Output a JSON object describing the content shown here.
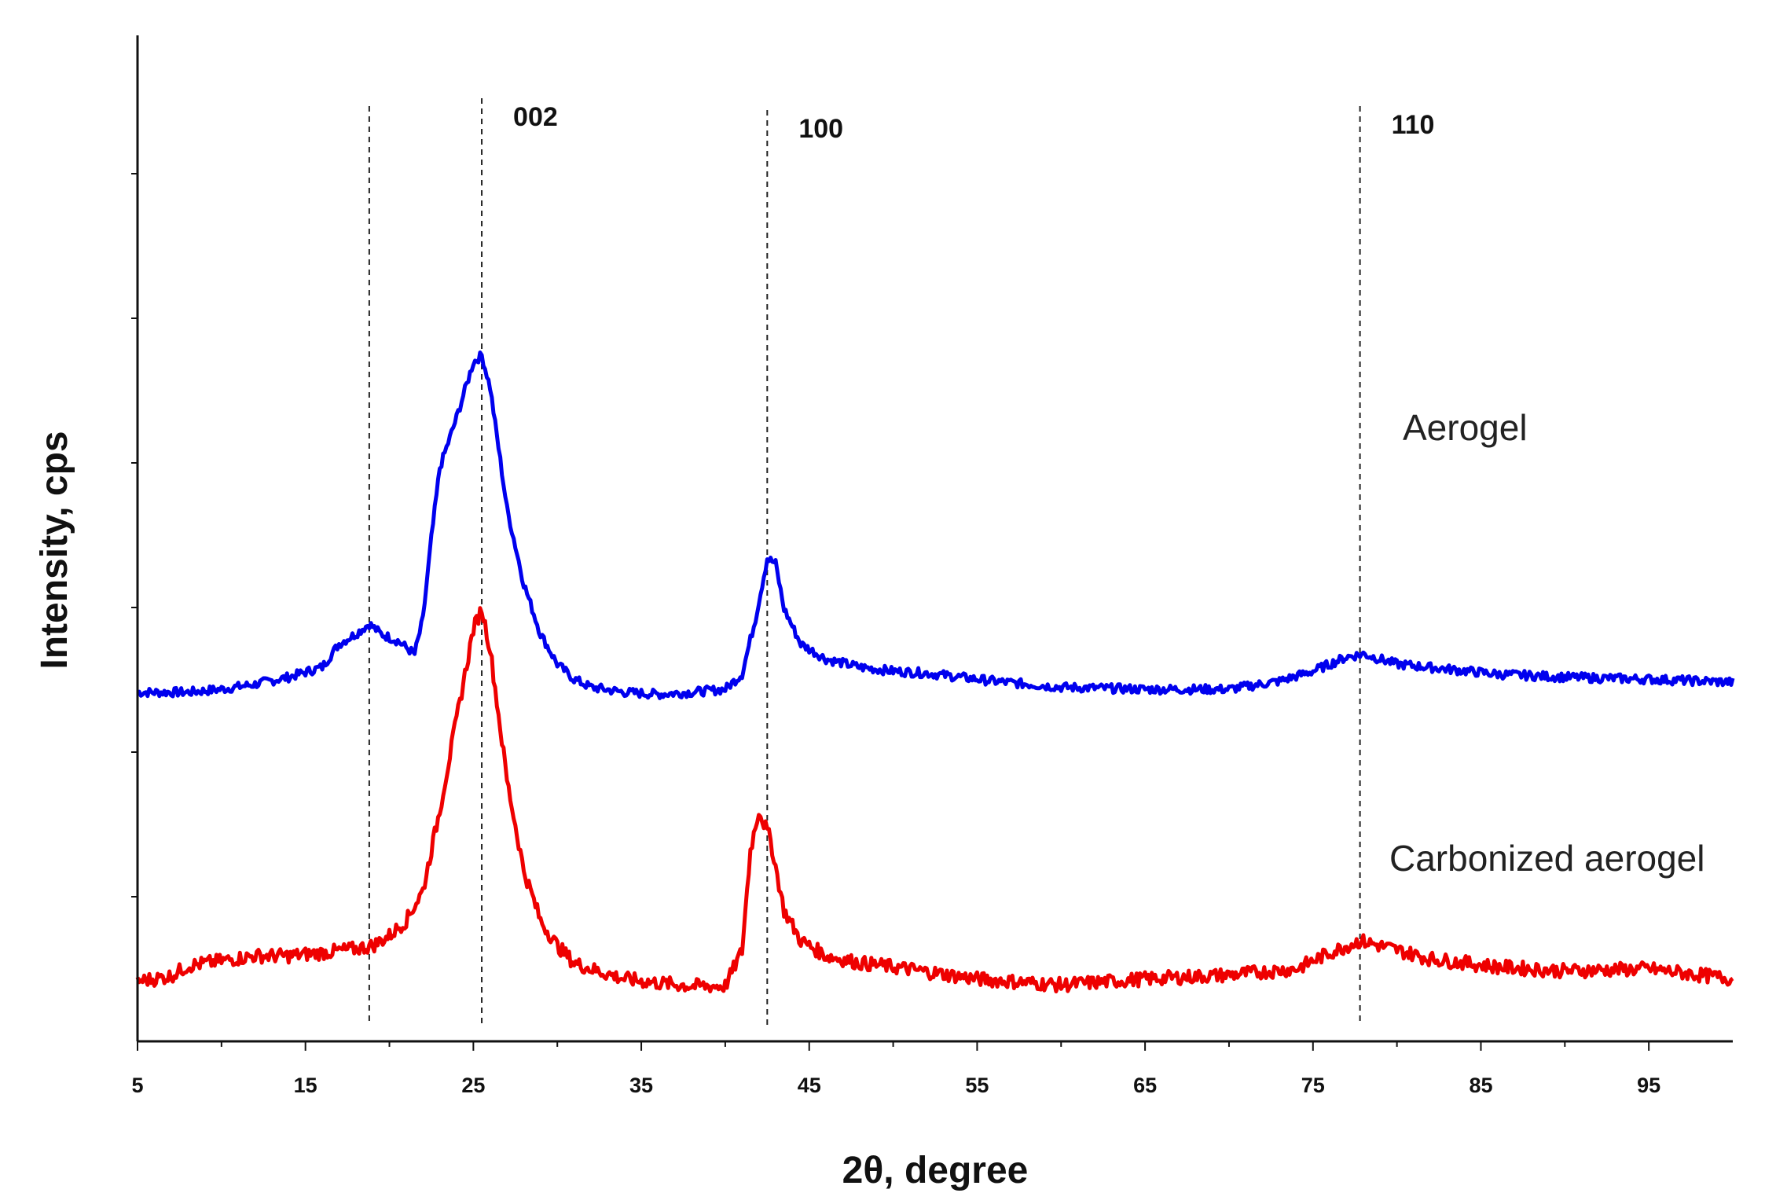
{
  "chart_data": {
    "type": "line",
    "xlabel": "2θ, degree",
    "ylabel": "Intensity, cps",
    "xlim": [
      5,
      100
    ],
    "ylim": [
      0,
      10
    ],
    "x_ticks": [
      5,
      15,
      25,
      35,
      45,
      55,
      65,
      75,
      85,
      95
    ],
    "y_tick_labels_shown": false,
    "grid": false,
    "reference_lines": [
      {
        "x": 18.8,
        "label": ""
      },
      {
        "x": 25.5,
        "label": "002"
      },
      {
        "x": 42.5,
        "label": "100"
      },
      {
        "x": 77.8,
        "label": "110"
      }
    ],
    "series": [
      {
        "name": "Aerogel",
        "color": "#0000ee",
        "points": [
          [
            5,
            3.47
          ],
          [
            8,
            3.47
          ],
          [
            10,
            3.5
          ],
          [
            12,
            3.55
          ],
          [
            14,
            3.62
          ],
          [
            16,
            3.72
          ],
          [
            17,
            3.95
          ],
          [
            18,
            4.05
          ],
          [
            18.8,
            4.15
          ],
          [
            19.5,
            4.05
          ],
          [
            20.5,
            3.98
          ],
          [
            21.5,
            3.85
          ],
          [
            22,
            4.2
          ],
          [
            22.5,
            5.0
          ],
          [
            23,
            5.7
          ],
          [
            24,
            6.2
          ],
          [
            25,
            6.75
          ],
          [
            25.5,
            6.82
          ],
          [
            26,
            6.5
          ],
          [
            27,
            5.3
          ],
          [
            28,
            4.55
          ],
          [
            29,
            4.05
          ],
          [
            30,
            3.75
          ],
          [
            31,
            3.6
          ],
          [
            32,
            3.52
          ],
          [
            34,
            3.47
          ],
          [
            36,
            3.45
          ],
          [
            38,
            3.47
          ],
          [
            40,
            3.5
          ],
          [
            41,
            3.65
          ],
          [
            41.8,
            4.2
          ],
          [
            42.5,
            4.8
          ],
          [
            43,
            4.75
          ],
          [
            43.5,
            4.3
          ],
          [
            44.5,
            3.95
          ],
          [
            46,
            3.8
          ],
          [
            48,
            3.72
          ],
          [
            50,
            3.68
          ],
          [
            52,
            3.66
          ],
          [
            56,
            3.58
          ],
          [
            60,
            3.52
          ],
          [
            65,
            3.5
          ],
          [
            70,
            3.5
          ],
          [
            73,
            3.58
          ],
          [
            75,
            3.68
          ],
          [
            77,
            3.82
          ],
          [
            78,
            3.85
          ],
          [
            80,
            3.75
          ],
          [
            83,
            3.7
          ],
          [
            86,
            3.65
          ],
          [
            90,
            3.62
          ],
          [
            95,
            3.6
          ],
          [
            100,
            3.57
          ]
        ]
      },
      {
        "name": "Carbonized aerogel",
        "color": "#ee0000",
        "points": [
          [
            5,
            0.6
          ],
          [
            6,
            0.62
          ],
          [
            7,
            0.65
          ],
          [
            8,
            0.75
          ],
          [
            10,
            0.8
          ],
          [
            12,
            0.85
          ],
          [
            14,
            0.85
          ],
          [
            16,
            0.88
          ],
          [
            18,
            0.92
          ],
          [
            19,
            0.95
          ],
          [
            20,
            1.05
          ],
          [
            21,
            1.2
          ],
          [
            22,
            1.5
          ],
          [
            23,
            2.3
          ],
          [
            24,
            3.2
          ],
          [
            25,
            4.1
          ],
          [
            25.5,
            4.3
          ],
          [
            26,
            3.9
          ],
          [
            27,
            2.6
          ],
          [
            28,
            1.7
          ],
          [
            29,
            1.2
          ],
          [
            30,
            0.95
          ],
          [
            31,
            0.78
          ],
          [
            32,
            0.72
          ],
          [
            34,
            0.62
          ],
          [
            36,
            0.58
          ],
          [
            38,
            0.55
          ],
          [
            40,
            0.55
          ],
          [
            41,
            0.9
          ],
          [
            41.5,
            1.9
          ],
          [
            42,
            2.3
          ],
          [
            42.7,
            2.0
          ],
          [
            43.5,
            1.3
          ],
          [
            44.5,
            1.0
          ],
          [
            46,
            0.85
          ],
          [
            48,
            0.78
          ],
          [
            50,
            0.74
          ],
          [
            55,
            0.62
          ],
          [
            60,
            0.56
          ],
          [
            65,
            0.62
          ],
          [
            70,
            0.66
          ],
          [
            74,
            0.72
          ],
          [
            76,
            0.88
          ],
          [
            77.8,
            1.0
          ],
          [
            79,
            0.95
          ],
          [
            82,
            0.82
          ],
          [
            86,
            0.74
          ],
          [
            90,
            0.7
          ],
          [
            95,
            0.72
          ],
          [
            100,
            0.62
          ]
        ]
      }
    ]
  }
}
